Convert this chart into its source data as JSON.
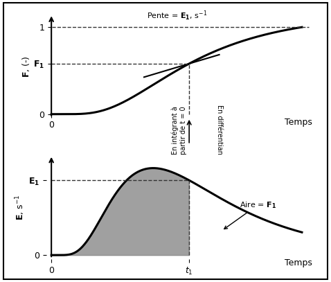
{
  "fig_width": 4.78,
  "fig_height": 4.07,
  "dpi": 100,
  "bg_color": "#f0f0f0",
  "panel_bg": "#ffffff",
  "curve_color": "#000000",
  "fill_color": "#808080",
  "dashed_color": "#333333",
  "t1": 0.55,
  "E1": 0.75,
  "F1": 0.55,
  "tangent_slope_label": "Pente = $\\mathbf{E_1}$, s$^{-1}$",
  "aire_label": "Aire = $\\mathbf{F_1}$",
  "xlabel_top": "Temps",
  "xlabel_bot": "Temps",
  "ylabel_top": "$\\mathbf{F}$, (-)",
  "ylabel_bot": "$\\mathbf{E}$, s$^{-1}$",
  "arrow_up_label": "En intégrant à\npartir de t = 0",
  "arrow_down_label": "En différentiant",
  "t1_label": "$t_1$",
  "text_color": "#000000",
  "fontsize_labels": 9,
  "fontsize_annot": 8
}
